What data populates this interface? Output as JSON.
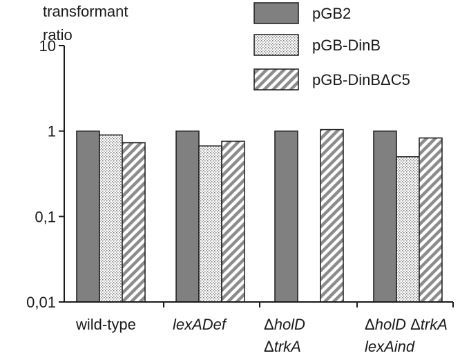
{
  "chart_data": {
    "type": "bar",
    "title": "",
    "ylabel": "transformant ratio",
    "xlabel": "",
    "yscale": "log",
    "ylim": [
      0.01,
      10
    ],
    "yticks": [
      {
        "value": 10,
        "label": "10"
      },
      {
        "value": 1,
        "label": "1"
      },
      {
        "value": 0.1,
        "label": "0,1"
      },
      {
        "value": 0.01,
        "label": "0,01"
      }
    ],
    "categories": [
      {
        "lines": [
          {
            "parts": [
              {
                "text": "wild-type",
                "italic": false
              }
            ]
          }
        ]
      },
      {
        "lines": [
          {
            "parts": [
              {
                "text": "lexADef",
                "italic": true
              }
            ]
          }
        ]
      },
      {
        "lines": [
          {
            "parts": [
              {
                "text": "Δ",
                "italic": false
              },
              {
                "text": "holD",
                "italic": true
              }
            ]
          },
          {
            "parts": [
              {
                "text": "Δ",
                "italic": false
              },
              {
                "text": "trkA",
                "italic": true
              }
            ]
          }
        ]
      },
      {
        "lines": [
          {
            "parts": [
              {
                "text": "Δ",
                "italic": false
              },
              {
                "text": "holD",
                "italic": true
              },
              {
                "text": " Δ",
                "italic": false
              },
              {
                "text": "trkA",
                "italic": true
              }
            ]
          },
          {
            "parts": [
              {
                "text": "lexAind",
                "italic": true
              }
            ]
          }
        ]
      }
    ],
    "series": [
      {
        "name": "pGB2",
        "pattern": "solid",
        "values": [
          1.0,
          1.0,
          1.0,
          1.0
        ]
      },
      {
        "name": "pGB-DinB",
        "pattern": "dots",
        "values": [
          0.9,
          0.67,
          null,
          0.5
        ]
      },
      {
        "name": "pGB-DinBΔC5",
        "pattern": "stripes",
        "values": [
          0.73,
          0.76,
          1.04,
          0.83
        ]
      }
    ],
    "legend_position": "top-right",
    "colors": {
      "solid": "#808080",
      "pattern_ink": "#7a7a7a",
      "axis": "#1a1a1a"
    }
  }
}
